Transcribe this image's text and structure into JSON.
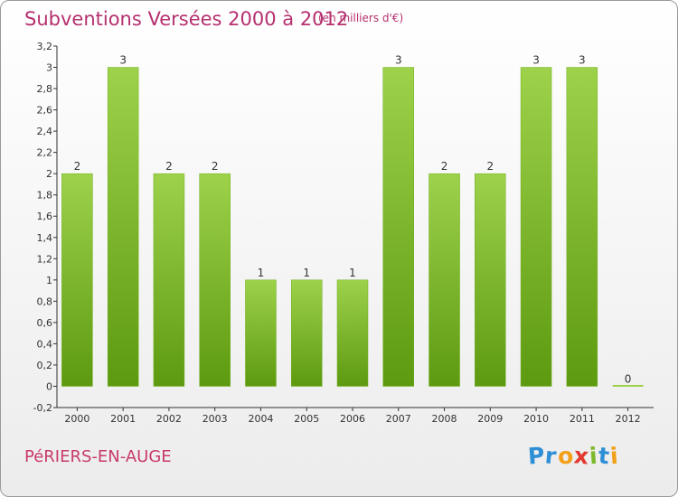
{
  "header": {
    "title": "Subventions Versées 2000 à 2012",
    "subtitle": "(en milliers d'€)"
  },
  "footer": {
    "place": "PéRIERS-EN-AUGE",
    "logo": {
      "letters": [
        {
          "ch": "P",
          "color": "#2e8fd6"
        },
        {
          "ch": "r",
          "color": "#2e8fd6"
        },
        {
          "ch": "o",
          "color": "#f3a019"
        },
        {
          "ch": "x",
          "color": "#e2382e"
        },
        {
          "ch": "i",
          "color": "#7cb829"
        },
        {
          "ch": "t",
          "color": "#2e8fd6"
        },
        {
          "ch": "i",
          "color": "#f3a019"
        }
      ]
    }
  },
  "colors": {
    "bar_top": "#9dd24a",
    "bar_bottom": "#5d9a10",
    "title": "#b5306e"
  },
  "chart_data": {
    "type": "bar",
    "categories": [
      "2000",
      "2001",
      "2002",
      "2003",
      "2004",
      "2005",
      "2006",
      "2007",
      "2008",
      "2009",
      "2010",
      "2011",
      "2012"
    ],
    "values": [
      2,
      3,
      2,
      2,
      1,
      1,
      1,
      3,
      2,
      2,
      3,
      3,
      0
    ],
    "data_labels": [
      "2",
      "3",
      "2",
      "2",
      "1",
      "1",
      "1",
      "3",
      "2",
      "2",
      "3",
      "3",
      "0"
    ],
    "y_ticks": [
      -0.2,
      0,
      0.2,
      0.4,
      0.6,
      0.8,
      1,
      1.2,
      1.4,
      1.6,
      1.8,
      2,
      2.2,
      2.4,
      2.6,
      2.8,
      3,
      3.2
    ],
    "y_tick_labels": [
      "-0,2",
      "0",
      "0,2",
      "0,4",
      "0,6",
      "0,8",
      "1",
      "1,2",
      "1,4",
      "1,6",
      "1,8",
      "2",
      "2,2",
      "2,4",
      "2,6",
      "2,8",
      "3",
      "3,2"
    ],
    "ylim": [
      -0.2,
      3.2
    ],
    "title": "Subventions Versées 2000 à 2012",
    "xlabel": "",
    "ylabel": "",
    "grid": false,
    "legend": "none"
  }
}
